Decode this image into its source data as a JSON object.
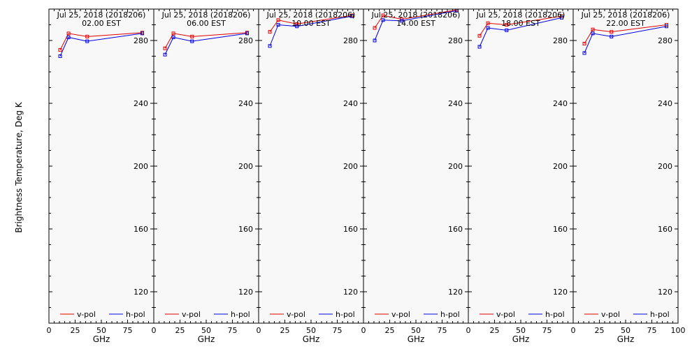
{
  "figure": {
    "ylabel": "Brightness Temperature, Deg K",
    "xlabel": "GHz",
    "colors": {
      "v_pol": "#e00000",
      "h_pol": "#0000e0",
      "background": "#f8f8f8",
      "axis": "#000000"
    }
  },
  "chart_data": [
    {
      "type": "line",
      "title": "Jul 25, 2018 (2018206)",
      "subtitle": "02.00 EST",
      "xlabel": "GHz",
      "ylabel": "Brightness Temperature, Deg K",
      "xlim": [
        0,
        100
      ],
      "ylim": [
        100,
        300
      ],
      "xticks": [
        0,
        25,
        50,
        75
      ],
      "yticks": [
        120,
        160,
        200,
        240,
        280
      ],
      "x": [
        10.7,
        18.7,
        36.5,
        89
      ],
      "series": [
        {
          "name": "v-pol",
          "color": "#e00000",
          "values": [
            274,
            284.5,
            282.5,
            285
          ]
        },
        {
          "name": "h-pol",
          "color": "#0000e0",
          "values": [
            270,
            282,
            279.5,
            284.5
          ]
        }
      ]
    },
    {
      "type": "line",
      "title": "Jul 25, 2018 (2018206)",
      "subtitle": "06.00 EST",
      "xlabel": "GHz",
      "ylabel": "Brightness Temperature, Deg K",
      "xlim": [
        0,
        100
      ],
      "ylim": [
        100,
        300
      ],
      "xticks": [
        0,
        25,
        50,
        75
      ],
      "yticks": [
        120,
        160,
        200,
        240,
        280
      ],
      "x": [
        10.7,
        18.7,
        36.5,
        89
      ],
      "series": [
        {
          "name": "v-pol",
          "color": "#e00000",
          "values": [
            275,
            284.5,
            282.5,
            285
          ]
        },
        {
          "name": "h-pol",
          "color": "#0000e0",
          "values": [
            271,
            282,
            279.5,
            284.5
          ]
        }
      ]
    },
    {
      "type": "line",
      "title": "Jul 25, 2018 (2018206)",
      "subtitle": "10.00 EST",
      "xlabel": "GHz",
      "ylabel": "Brightness Temperature, Deg K",
      "xlim": [
        0,
        100
      ],
      "ylim": [
        100,
        300
      ],
      "xticks": [
        0,
        25,
        50,
        75
      ],
      "yticks": [
        120,
        160,
        200,
        240,
        280
      ],
      "x": [
        10.7,
        18.7,
        36.5,
        89
      ],
      "series": [
        {
          "name": "v-pol",
          "color": "#e00000",
          "values": [
            285.5,
            293,
            290.5,
            296
          ]
        },
        {
          "name": "h-pol",
          "color": "#0000e0",
          "values": [
            276.5,
            290,
            289,
            295.5
          ]
        }
      ]
    },
    {
      "type": "line",
      "title": "Jul 25, 2018 (2018206)",
      "subtitle": "14.00 EST",
      "xlabel": "GHz",
      "ylabel": "Brightness Temperature, Deg K",
      "xlim": [
        0,
        100
      ],
      "ylim": [
        100,
        300
      ],
      "xticks": [
        0,
        25,
        50,
        75
      ],
      "yticks": [
        120,
        160,
        200,
        240,
        280
      ],
      "x": [
        10.7,
        18.7,
        36.5,
        89
      ],
      "series": [
        {
          "name": "v-pol",
          "color": "#e00000",
          "values": [
            288,
            296,
            293.5,
            299.5
          ]
        },
        {
          "name": "h-pol",
          "color": "#0000e0",
          "values": [
            280,
            293,
            292.5,
            299
          ]
        }
      ]
    },
    {
      "type": "line",
      "title": "Jul 25, 2018 (2018206)",
      "subtitle": "18.00 EST",
      "xlabel": "GHz",
      "ylabel": "Brightness Temperature, Deg K",
      "xlim": [
        0,
        100
      ],
      "ylim": [
        100,
        300
      ],
      "xticks": [
        0,
        25,
        50,
        75
      ],
      "yticks": [
        120,
        160,
        200,
        240,
        280
      ],
      "x": [
        10.7,
        18.7,
        36.5,
        89
      ],
      "series": [
        {
          "name": "v-pol",
          "color": "#e00000",
          "values": [
            283,
            291,
            290,
            295.5
          ]
        },
        {
          "name": "h-pol",
          "color": "#0000e0",
          "values": [
            276,
            288,
            286.5,
            294.5
          ]
        }
      ]
    },
    {
      "type": "line",
      "title": "Jul 25, 2018 (2018206)",
      "subtitle": "22.00 EST",
      "xlabel": "GHz",
      "ylabel": "Brightness Temperature, Deg K",
      "xlim": [
        0,
        100
      ],
      "ylim": [
        100,
        300
      ],
      "xticks": [
        0,
        25,
        50,
        75
      ],
      "yticks": [
        120,
        160,
        200,
        240,
        280
      ],
      "x": [
        10.7,
        18.7,
        36.5,
        89
      ],
      "series": [
        {
          "name": "v-pol",
          "color": "#e00000",
          "values": [
            278,
            287,
            285.5,
            290
          ]
        },
        {
          "name": "h-pol",
          "color": "#0000e0",
          "values": [
            272,
            284.5,
            282.5,
            289
          ]
        }
      ]
    }
  ]
}
